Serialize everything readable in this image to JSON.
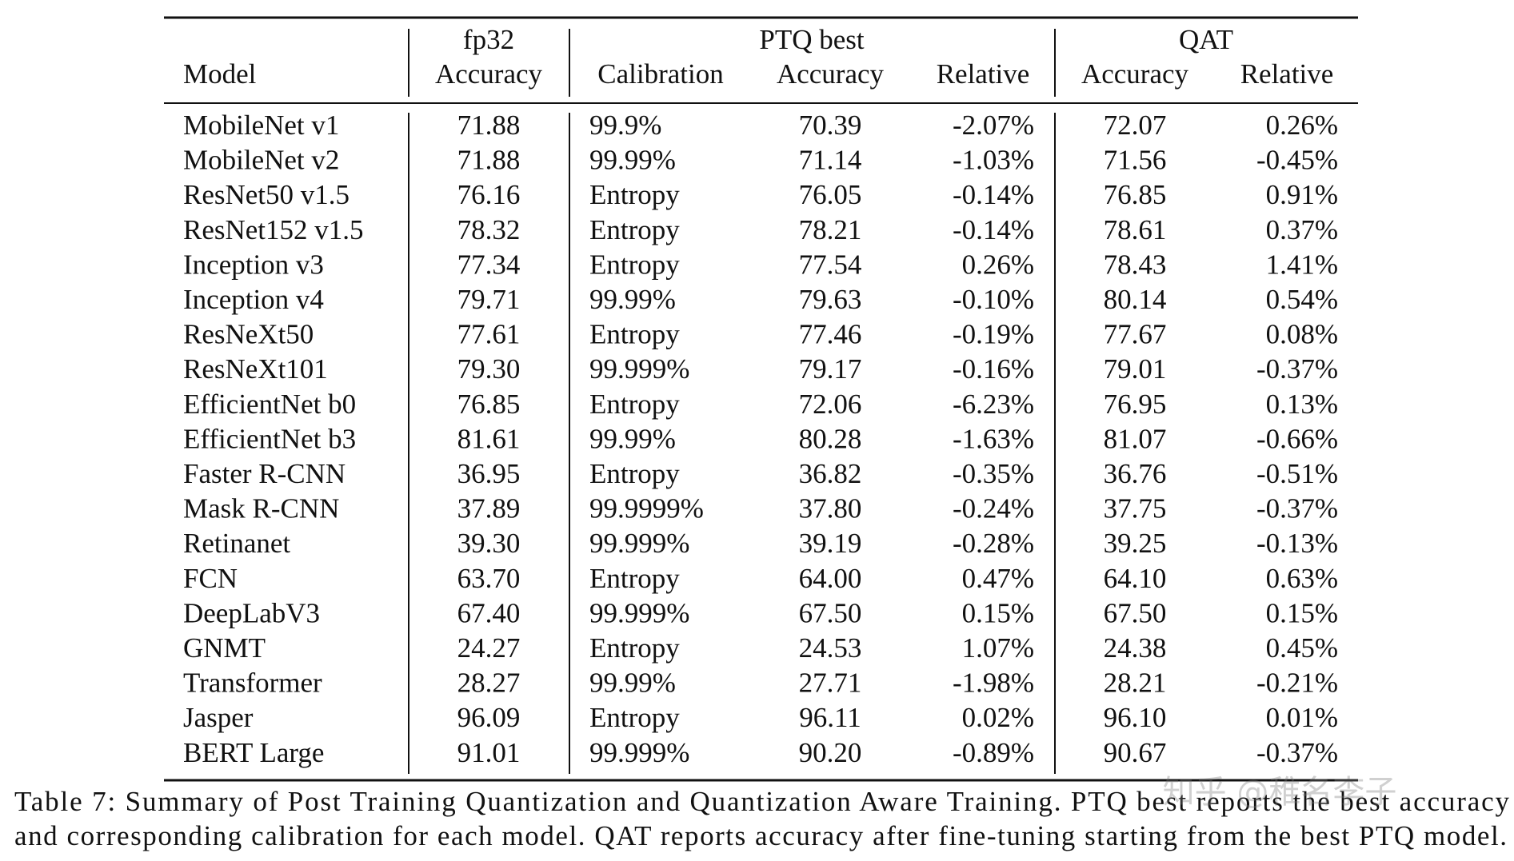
{
  "table": {
    "groups": [
      "fp32",
      "PTQ best",
      "QAT"
    ],
    "columns": [
      "Model",
      "Accuracy",
      "Calibration",
      "Accuracy",
      "Relative",
      "Accuracy",
      "Relative"
    ],
    "rows": [
      [
        "MobileNet v1",
        "71.88",
        "99.9%",
        "70.39",
        "-2.07%",
        "72.07",
        "0.26%"
      ],
      [
        "MobileNet v2",
        "71.88",
        "99.99%",
        "71.14",
        "-1.03%",
        "71.56",
        "-0.45%"
      ],
      [
        "ResNet50 v1.5",
        "76.16",
        "Entropy",
        "76.05",
        "-0.14%",
        "76.85",
        "0.91%"
      ],
      [
        "ResNet152 v1.5",
        "78.32",
        "Entropy",
        "78.21",
        "-0.14%",
        "78.61",
        "0.37%"
      ],
      [
        "Inception v3",
        "77.34",
        "Entropy",
        "77.54",
        "0.26%",
        "78.43",
        "1.41%"
      ],
      [
        "Inception v4",
        "79.71",
        "99.99%",
        "79.63",
        "-0.10%",
        "80.14",
        "0.54%"
      ],
      [
        "ResNeXt50",
        "77.61",
        "Entropy",
        "77.46",
        "-0.19%",
        "77.67",
        "0.08%"
      ],
      [
        "ResNeXt101",
        "79.30",
        "99.999%",
        "79.17",
        "-0.16%",
        "79.01",
        "-0.37%"
      ],
      [
        "EfficientNet b0",
        "76.85",
        "Entropy",
        "72.06",
        "-6.23%",
        "76.95",
        "0.13%"
      ],
      [
        "EfficientNet b3",
        "81.61",
        "99.99%",
        "80.28",
        "-1.63%",
        "81.07",
        "-0.66%"
      ],
      [
        "Faster R-CNN",
        "36.95",
        "Entropy",
        "36.82",
        "-0.35%",
        "36.76",
        "-0.51%"
      ],
      [
        "Mask R-CNN",
        "37.89",
        "99.9999%",
        "37.80",
        "-0.24%",
        "37.75",
        "-0.37%"
      ],
      [
        "Retinanet",
        "39.30",
        "99.999%",
        "39.19",
        "-0.28%",
        "39.25",
        "-0.13%"
      ],
      [
        "FCN",
        "63.70",
        "Entropy",
        "64.00",
        "0.47%",
        "64.10",
        "0.63%"
      ],
      [
        "DeepLabV3",
        "67.40",
        "99.999%",
        "67.50",
        "0.15%",
        "67.50",
        "0.15%"
      ],
      [
        "GNMT",
        "24.27",
        "Entropy",
        "24.53",
        "1.07%",
        "24.38",
        "0.45%"
      ],
      [
        "Transformer",
        "28.27",
        "99.99%",
        "27.71",
        "-1.98%",
        "28.21",
        "-0.21%"
      ],
      [
        "Jasper",
        "96.09",
        "Entropy",
        "96.11",
        "0.02%",
        "96.10",
        "0.01%"
      ],
      [
        "BERT Large",
        "91.01",
        "99.999%",
        "90.20",
        "-0.89%",
        "90.67",
        "-0.37%"
      ]
    ]
  },
  "caption": [
    "Table 7: Summary of Post Training Quantization and Quantization Aware Training. PTQ best reports the best accuracy",
    "and corresponding calibration for each model. QAT reports accuracy after fine-tuning starting from the best PTQ model."
  ],
  "watermark": "知乎 @稚名李子"
}
